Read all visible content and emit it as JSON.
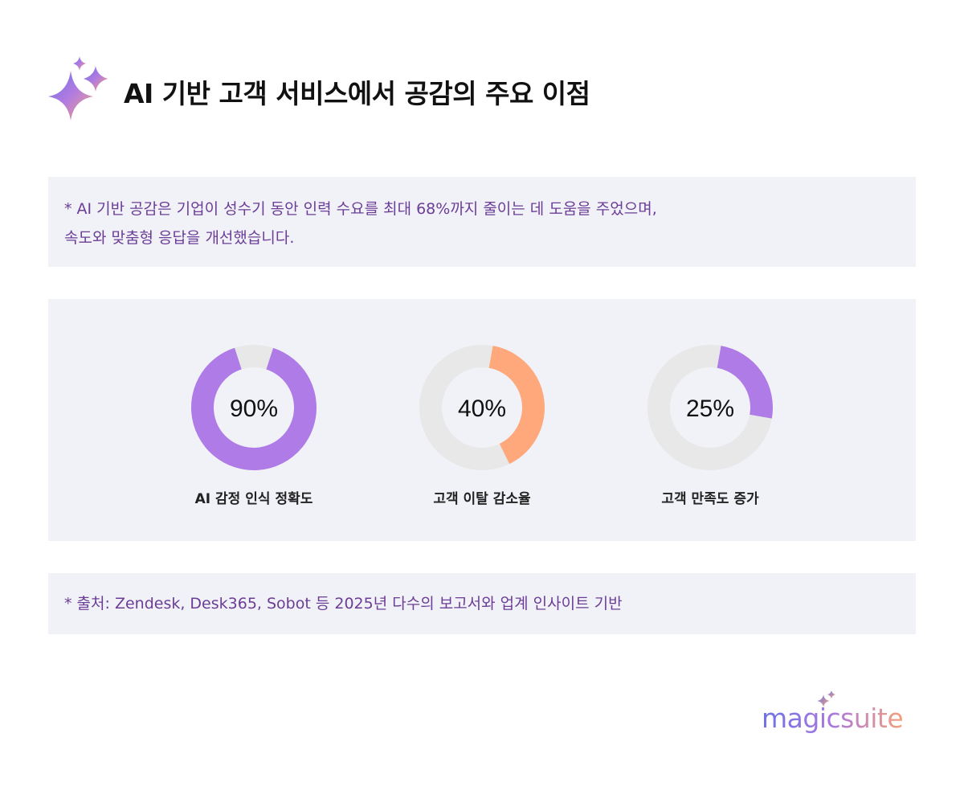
{
  "header": {
    "title": "AI 기반 고객 서비스에서 공감의 주요 이점",
    "icon": "sparkle-icon"
  },
  "note": {
    "line1": "* AI 기반 공감은 기업이 성수기 동안 인력 수요를 최대 68%까지 줄이는 데 도움을 주었으며,",
    "line2": "속도와 맞춤형 응답을 개선했습니다."
  },
  "chart_data": {
    "type": "donut",
    "items": [
      {
        "label": "AI 감정 인식 정확도",
        "value": 90,
        "display": "90%",
        "color": "#af7be6"
      },
      {
        "label": "고객 이탈 감소율",
        "value": 40,
        "display": "40%",
        "color": "#ffa87c"
      },
      {
        "label": "고객 만족도 증가",
        "value": 25,
        "display": "25%",
        "color": "#af7be6"
      }
    ],
    "track_color": "#e8e8e8",
    "max": 100
  },
  "source": {
    "text": "* 출처: Zendesk, Desk365, Sobot 등 2025년 다수의 보고서와 업계 인사이트 기반"
  },
  "brand": {
    "name": "magicsuite",
    "icon": "sparkle-icon"
  },
  "colors": {
    "panel_bg": "#f1f2f8",
    "note_text": "#6b3d96",
    "purple": "#af7be6",
    "orange": "#ffa87c",
    "track": "#e8e8e8"
  }
}
